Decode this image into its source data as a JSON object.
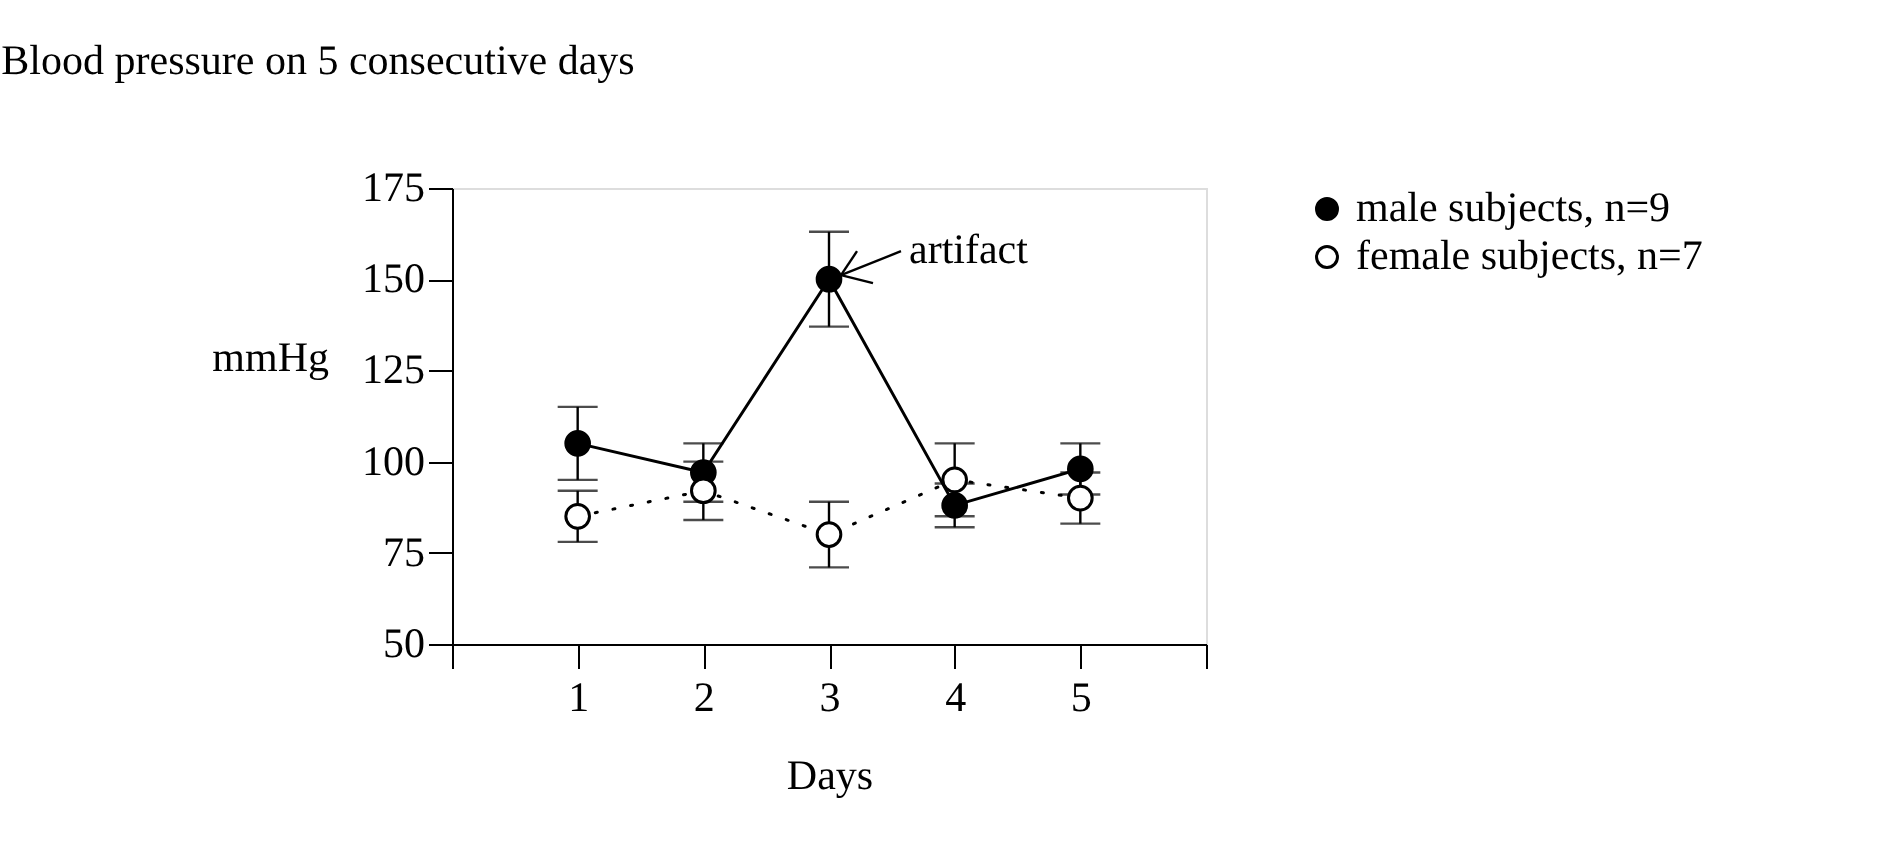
{
  "chart_data": {
    "type": "line",
    "title": "Blood pressure on 5 consecutive days",
    "xlabel": "Days",
    "ylabel": "mmHg",
    "x": [
      1,
      2,
      3,
      4,
      5
    ],
    "xlim": [
      0,
      6
    ],
    "xticks": [
      {
        "value": 0,
        "label": null
      },
      1,
      2,
      3,
      4,
      5,
      {
        "value": 6,
        "label": null
      }
    ],
    "ylim": [
      50,
      175
    ],
    "yticks": [
      50,
      75,
      100,
      125,
      150,
      175
    ],
    "series": [
      {
        "name": "male subjects, n=9",
        "color": "#000000",
        "marker": "circle",
        "line_style": "solid",
        "values": [
          105,
          97,
          150,
          88,
          98
        ],
        "errors": [
          10,
          8,
          13,
          6,
          7
        ]
      },
      {
        "name": "female subjects, n=7",
        "color": "#000000",
        "marker": "open circle",
        "line_style": "dotted",
        "values": [
          85,
          92,
          80,
          95,
          90
        ],
        "errors": [
          7,
          8,
          9,
          10,
          7
        ]
      }
    ],
    "annotations": [
      {
        "text": "artifact",
        "x": 3,
        "y": 150
      }
    ],
    "grid": false,
    "legend": "top right"
  }
}
